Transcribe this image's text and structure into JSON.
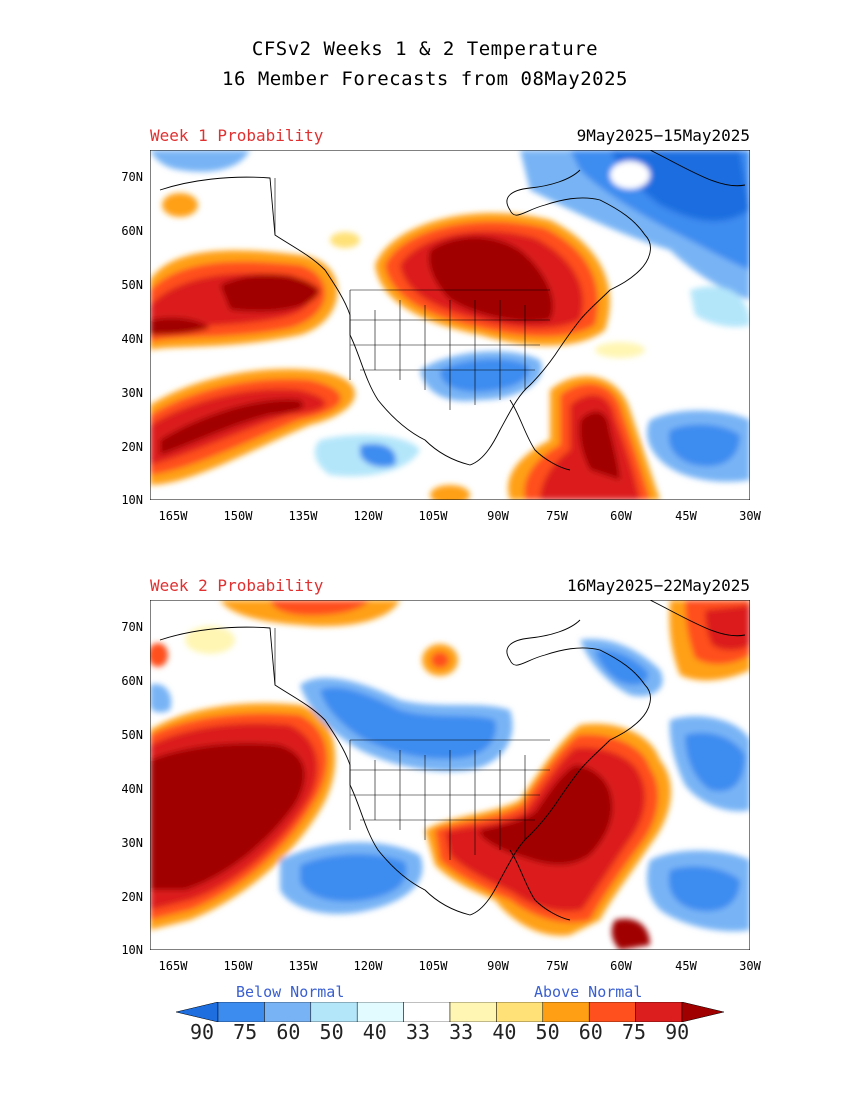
{
  "title_line1": "CFSv2 Weeks 1 & 2 Temperature",
  "title_line2": "16 Member Forecasts from 08May2025",
  "panels": [
    {
      "label": "Week 1 Probability",
      "dates": "9May2025−15May2025"
    },
    {
      "label": "Week 2 Probability",
      "dates": "16May2025−22May2025"
    }
  ],
  "lat_ticks": [
    "70N",
    "60N",
    "50N",
    "40N",
    "30N",
    "20N",
    "10N"
  ],
  "lon_ticks": [
    "165W",
    "150W",
    "135W",
    "120W",
    "105W",
    "90W",
    "75W",
    "60W",
    "45W",
    "30W"
  ],
  "legend": {
    "below_label": "Below Normal",
    "above_label": "Above Normal",
    "values": [
      "90",
      "75",
      "60",
      "50",
      "40",
      "33",
      "33",
      "40",
      "50",
      "60",
      "75",
      "90"
    ],
    "colors": [
      "#1e6ee0",
      "#3c8cf0",
      "#78b4f5",
      "#b4e6fa",
      "#e1fbff",
      "#ffffff",
      "#fff6b4",
      "#ffe178",
      "#ffa014",
      "#ff501e",
      "#dc1e1e",
      "#a00000"
    ]
  },
  "colors": {
    "dark_red": "#a00000",
    "red": "#dc1e1e",
    "orange_red": "#ff501e",
    "orange": "#ffa014",
    "yellow": "#ffe178",
    "light_yellow": "#fff6b4",
    "dark_blue": "#1e6ee0",
    "blue": "#3c8cf0",
    "mid_blue": "#78b4f5",
    "light_blue": "#b4e6fa",
    "pale_blue": "#e1fbff"
  }
}
